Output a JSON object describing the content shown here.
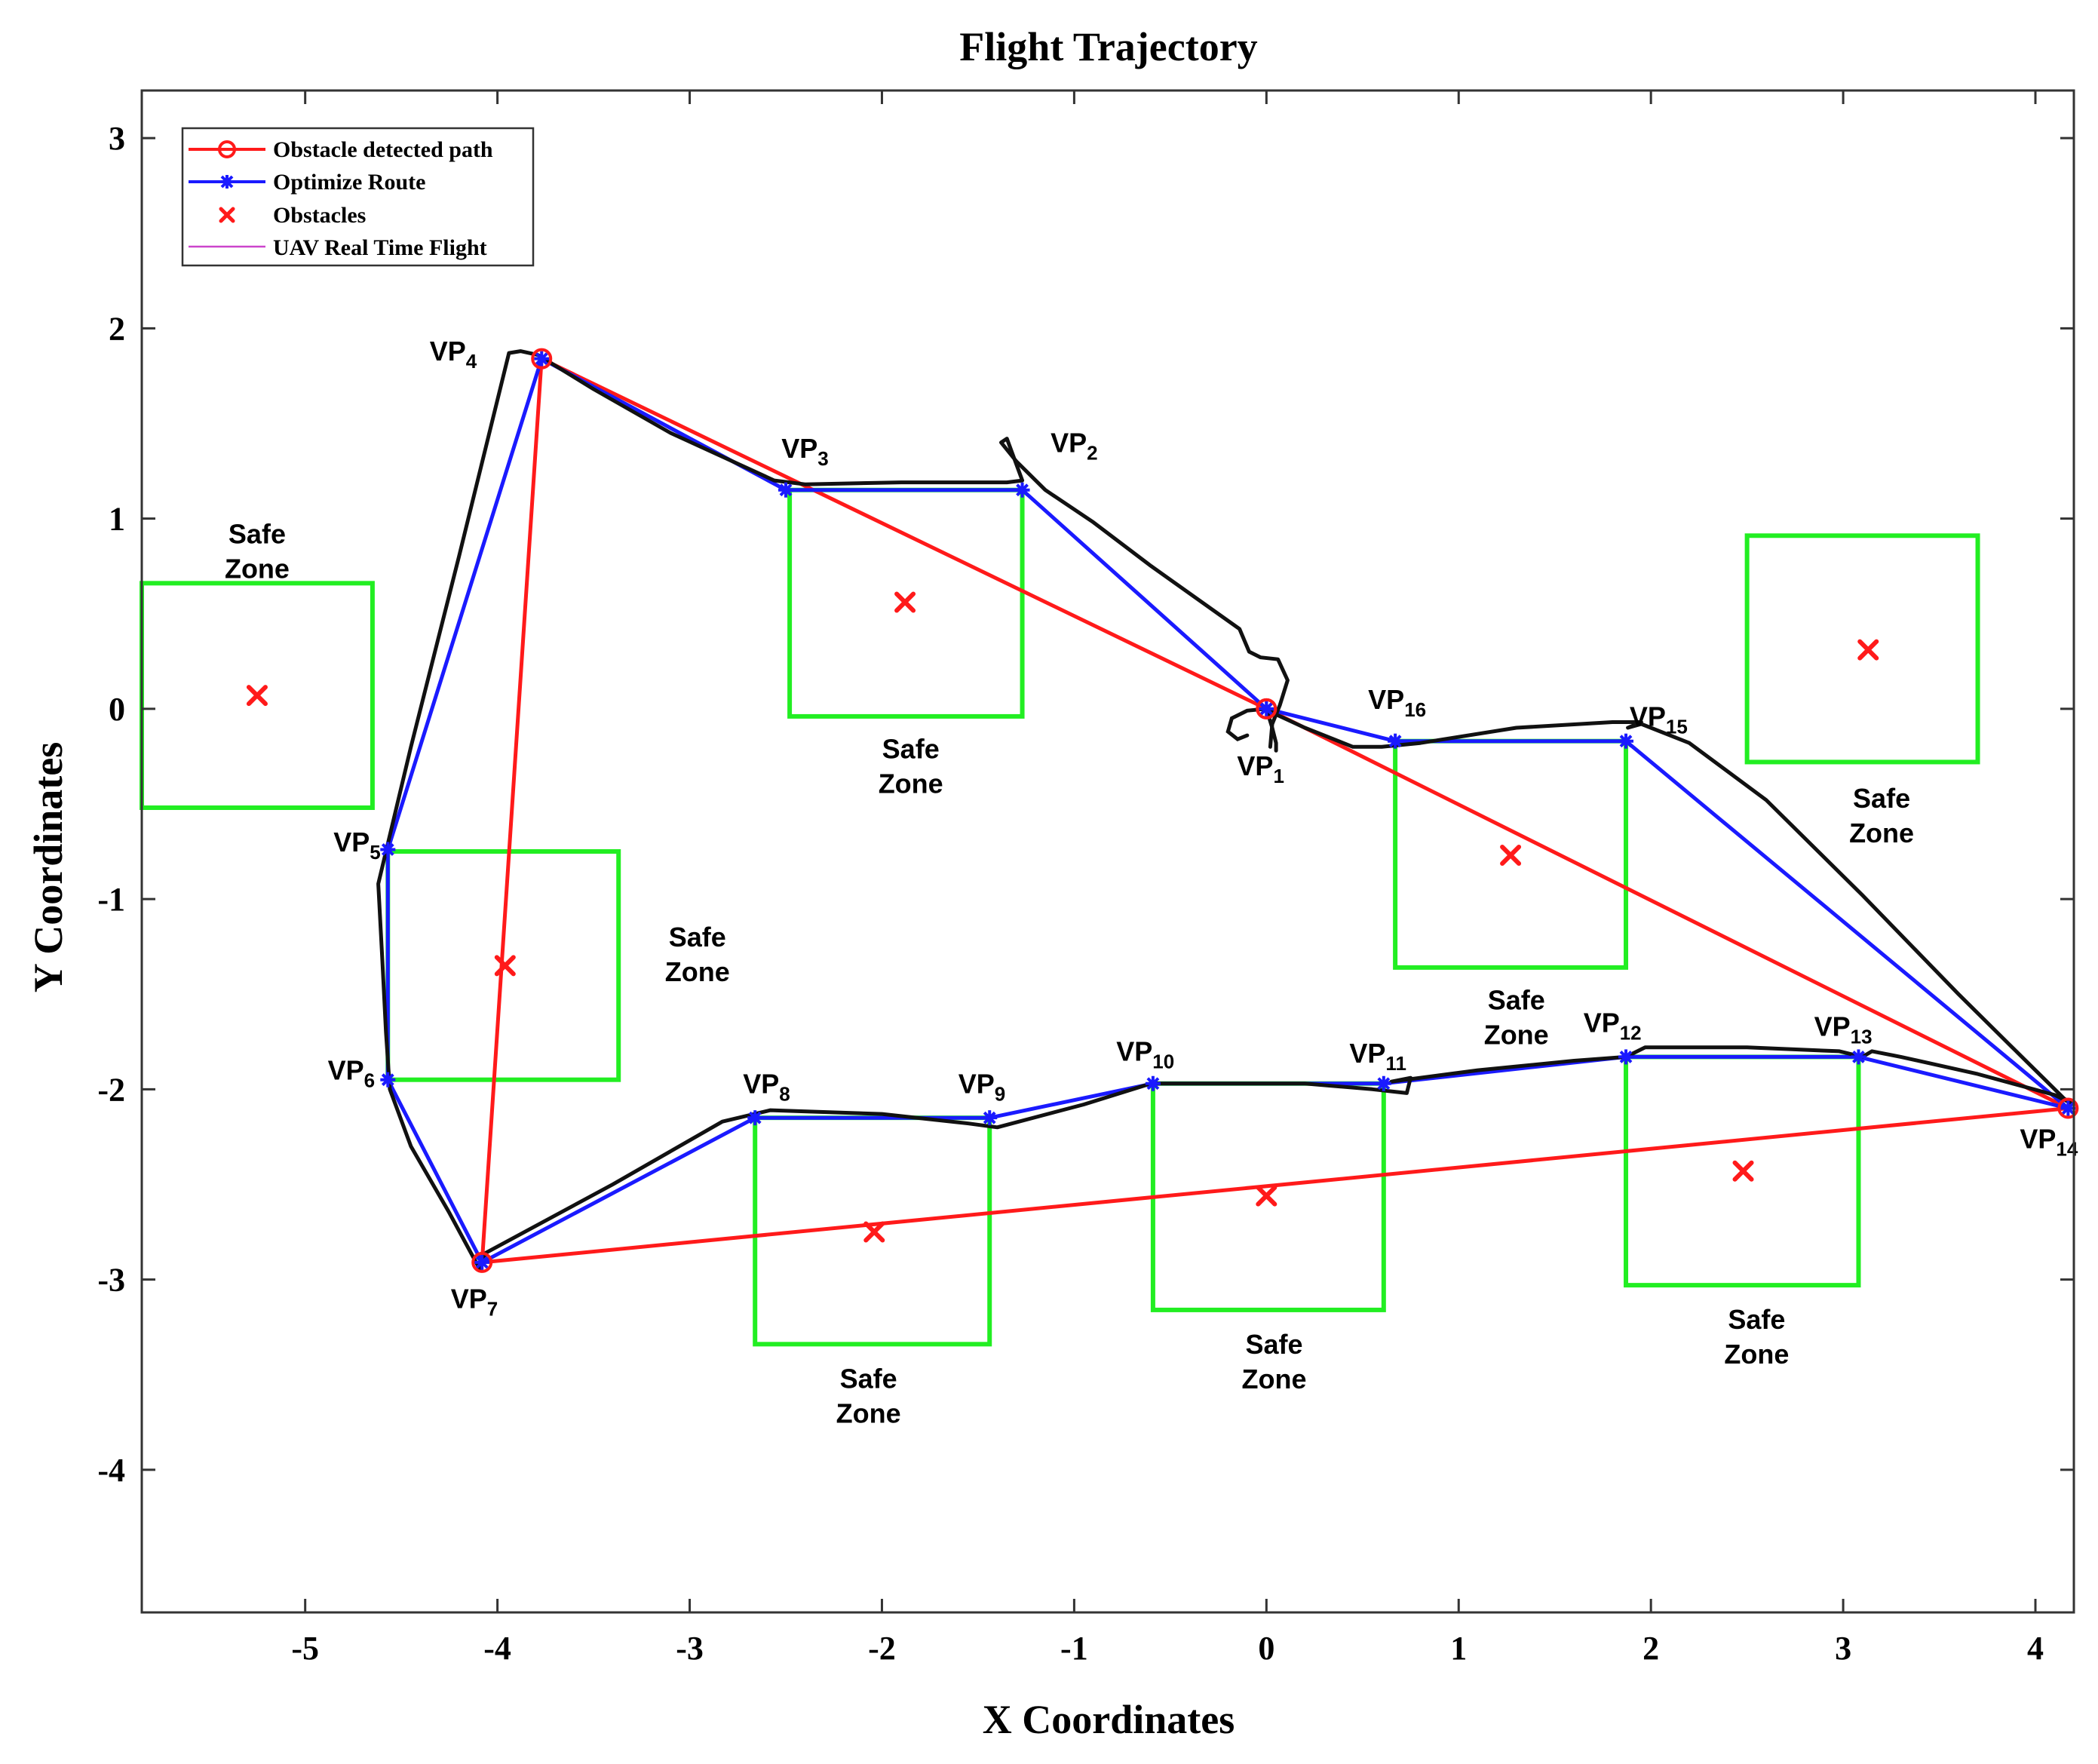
{
  "chart_data": {
    "type": "line",
    "title": "Flight Trajectory",
    "xlabel": "X Coordinates",
    "ylabel": "Y Coordinates",
    "xlim": [
      -5.85,
      4.2
    ],
    "ylim": [
      -4.75,
      3.25
    ],
    "xticks": [
      "-5",
      "-4",
      "-3",
      "-2",
      "-1",
      "0",
      "1",
      "2",
      "3",
      "4"
    ],
    "yticks": [
      "3",
      "2",
      "1",
      "0",
      "-1",
      "-2",
      "-3",
      "-4"
    ],
    "xtick_values": [
      -5,
      -4,
      -3,
      -2,
      -1,
      0,
      1,
      2,
      3,
      4
    ],
    "ytick_values": [
      3,
      2,
      1,
      0,
      -1,
      -2,
      -3,
      -4
    ],
    "legend": {
      "placement": "top-left",
      "entries": [
        "Obstacle detected path",
        "Optimize Route",
        "Obstacles",
        "UAV Real Time Flight"
      ]
    },
    "colors": {
      "obstacle_path": "#ff1a1a",
      "optimized_route": "#1a1aff",
      "obstacles": "#ff1a1a",
      "uav_flight": "#cc44cc",
      "uav_flight_drawn": "#111111",
      "safe_zone": "#22ee22"
    },
    "obstacle_path": {
      "name": "Obstacle detected path",
      "x": [
        0,
        -3.77,
        -4.08,
        4.17,
        0
      ],
      "y": [
        0,
        1.84,
        -2.91,
        -2.1,
        0
      ]
    },
    "optimized_route": {
      "name": "Optimize Route",
      "x": [
        0,
        -1.27,
        -2.5,
        -3.77,
        -4.57,
        -4.57,
        -4.08,
        -2.66,
        -1.44,
        -0.59,
        0.61,
        1.87,
        3.08,
        4.17,
        1.87,
        0.67,
        0
      ],
      "y": [
        0,
        1.15,
        1.15,
        1.84,
        -0.74,
        -1.95,
        -2.91,
        -2.15,
        -2.15,
        -1.97,
        -1.97,
        -1.83,
        -1.83,
        -2.1,
        -0.17,
        -0.17,
        0
      ]
    },
    "uav_flight": {
      "name": "UAV Real Time Flight",
      "x": [
        0.02,
        0.03,
        0.07,
        0.11,
        0.06,
        -0.03,
        -0.09,
        -0.14,
        -0.6,
        -0.9,
        -1.15,
        -1.3,
        -1.38,
        -1.35,
        -1.27,
        -1.35,
        -1.9,
        -2.4,
        -2.56,
        -3.1,
        -3.5,
        -3.79,
        -3.88,
        -3.94,
        -4.2,
        -4.45,
        -4.62,
        -4.6,
        -4.58,
        -4.56,
        -4.45,
        -4.25,
        -4.09,
        -4.06,
        -3.4,
        -2.83,
        -2.58,
        -2.0,
        -1.55,
        -1.4,
        -0.95,
        -0.6,
        0.2,
        0.55,
        0.73,
        0.75,
        0.65,
        1.1,
        1.6,
        1.87,
        1.97,
        2.5,
        2.98,
        3.1,
        3.15,
        3.3,
        3.7,
        4.1,
        4.2,
        4.15,
        4.05,
        3.9,
        3.6,
        3.1,
        2.6,
        2.2,
        1.95,
        1.88,
        1.95,
        1.8,
        1.3,
        0.8,
        0.6,
        0.45,
        0.2,
        0.05,
        0.0
      ],
      "y": [
        -0.2,
        -0.08,
        0.02,
        0.15,
        0.26,
        0.27,
        0.3,
        0.42,
        0.75,
        0.98,
        1.15,
        1.3,
        1.4,
        1.42,
        1.2,
        1.19,
        1.19,
        1.18,
        1.2,
        1.45,
        1.68,
        1.86,
        1.88,
        1.87,
        0.8,
        -0.2,
        -0.92,
        -1.3,
        -1.7,
        -2.0,
        -2.3,
        -2.65,
        -2.95,
        -2.86,
        -2.5,
        -2.17,
        -2.11,
        -2.13,
        -2.18,
        -2.2,
        -2.08,
        -1.97,
        -1.97,
        -2.0,
        -2.02,
        -1.94,
        -1.96,
        -1.9,
        -1.85,
        -1.83,
        -1.78,
        -1.78,
        -1.8,
        -1.83,
        -1.8,
        -1.83,
        -1.92,
        -2.03,
        -2.08,
        -2.05,
        -1.95,
        -1.8,
        -1.5,
        -0.98,
        -0.48,
        -0.18,
        -0.08,
        -0.1,
        -0.07,
        -0.07,
        -0.1,
        -0.18,
        -0.2,
        -0.2,
        -0.1,
        -0.03,
        0.0
      ]
    },
    "uav_flight_loops": [
      {
        "x": [
          0.0,
          -0.1,
          -0.18,
          -0.2,
          -0.15,
          -0.1
        ],
        "y": [
          0.0,
          -0.01,
          -0.05,
          -0.12,
          -0.16,
          -0.14
        ]
      },
      {
        "x": [
          0.0,
          0.03,
          0.05,
          0.05
        ],
        "y": [
          0.0,
          -0.1,
          -0.18,
          -0.22
        ]
      }
    ],
    "obstacles": {
      "name": "Obstacles",
      "x": [
        -5.25,
        -1.88,
        3.13,
        1.27,
        -3.96,
        -2.04,
        0.0,
        2.48
      ],
      "y": [
        0.07,
        0.56,
        0.31,
        -0.77,
        -1.35,
        -2.75,
        -2.56,
        -2.43
      ]
    },
    "safe_zones": [
      {
        "x0": -5.85,
        "x1": -4.65,
        "y0": -0.52,
        "y1": 0.66,
        "label_x": -5.25,
        "label_y": 0.87
      },
      {
        "x0": -2.48,
        "x1": -1.27,
        "y0": -0.04,
        "y1": 1.15,
        "label_x": -1.85,
        "label_y": -0.26
      },
      {
        "x0": 2.5,
        "x1": 3.7,
        "y0": -0.28,
        "y1": 0.91,
        "label_x": 3.2,
        "label_y": -0.52
      },
      {
        "x0": 0.67,
        "x1": 1.87,
        "y0": -1.36,
        "y1": -0.17,
        "label_x": 1.3,
        "label_y": -1.58
      },
      {
        "x0": -4.57,
        "x1": -3.37,
        "y0": -1.95,
        "y1": -0.75,
        "label_x": -2.96,
        "label_y": -1.25
      },
      {
        "x0": -2.66,
        "x1": -1.44,
        "y0": -3.34,
        "y1": -2.15,
        "label_x": -2.07,
        "label_y": -3.57
      },
      {
        "x0": -0.59,
        "x1": 0.61,
        "y0": -3.16,
        "y1": -1.97,
        "label_x": 0.04,
        "label_y": -3.39
      },
      {
        "x0": 1.87,
        "x1": 3.08,
        "y0": -3.03,
        "y1": -1.83,
        "label_x": 2.55,
        "label_y": -3.26
      }
    ],
    "safe_zone_label": [
      "Safe",
      "Zone"
    ],
    "waypoints": [
      {
        "label": "VP",
        "sub": "1",
        "x": -0.03,
        "y": -0.35
      },
      {
        "label": "VP",
        "sub": "2",
        "x": -1.0,
        "y": 1.35
      },
      {
        "label": "VP",
        "sub": "3",
        "x": -2.4,
        "y": 1.32
      },
      {
        "label": "VP",
        "sub": "4",
        "x": -4.23,
        "y": 1.83
      },
      {
        "label": "VP",
        "sub": "5",
        "x": -4.73,
        "y": -0.75
      },
      {
        "label": "VP",
        "sub": "6",
        "x": -4.76,
        "y": -1.95
      },
      {
        "label": "VP",
        "sub": "7",
        "x": -4.12,
        "y": -3.15
      },
      {
        "label": "VP",
        "sub": "8",
        "x": -2.6,
        "y": -2.02
      },
      {
        "label": "VP",
        "sub": "9",
        "x": -1.48,
        "y": -2.02
      },
      {
        "label": "VP",
        "sub": "10",
        "x": -0.63,
        "y": -1.85
      },
      {
        "label": "VP",
        "sub": "11",
        "x": 0.58,
        "y": -1.86
      },
      {
        "label": "VP",
        "sub": "12",
        "x": 1.8,
        "y": -1.7
      },
      {
        "label": "VP",
        "sub": "13",
        "x": 3.0,
        "y": -1.72
      },
      {
        "label": "VP",
        "sub": "14",
        "x": 4.07,
        "y": -2.31
      },
      {
        "label": "VP",
        "sub": "15",
        "x": 2.04,
        "y": -0.09
      },
      {
        "label": "VP",
        "sub": "16",
        "x": 0.68,
        "y": 0.0
      }
    ]
  }
}
